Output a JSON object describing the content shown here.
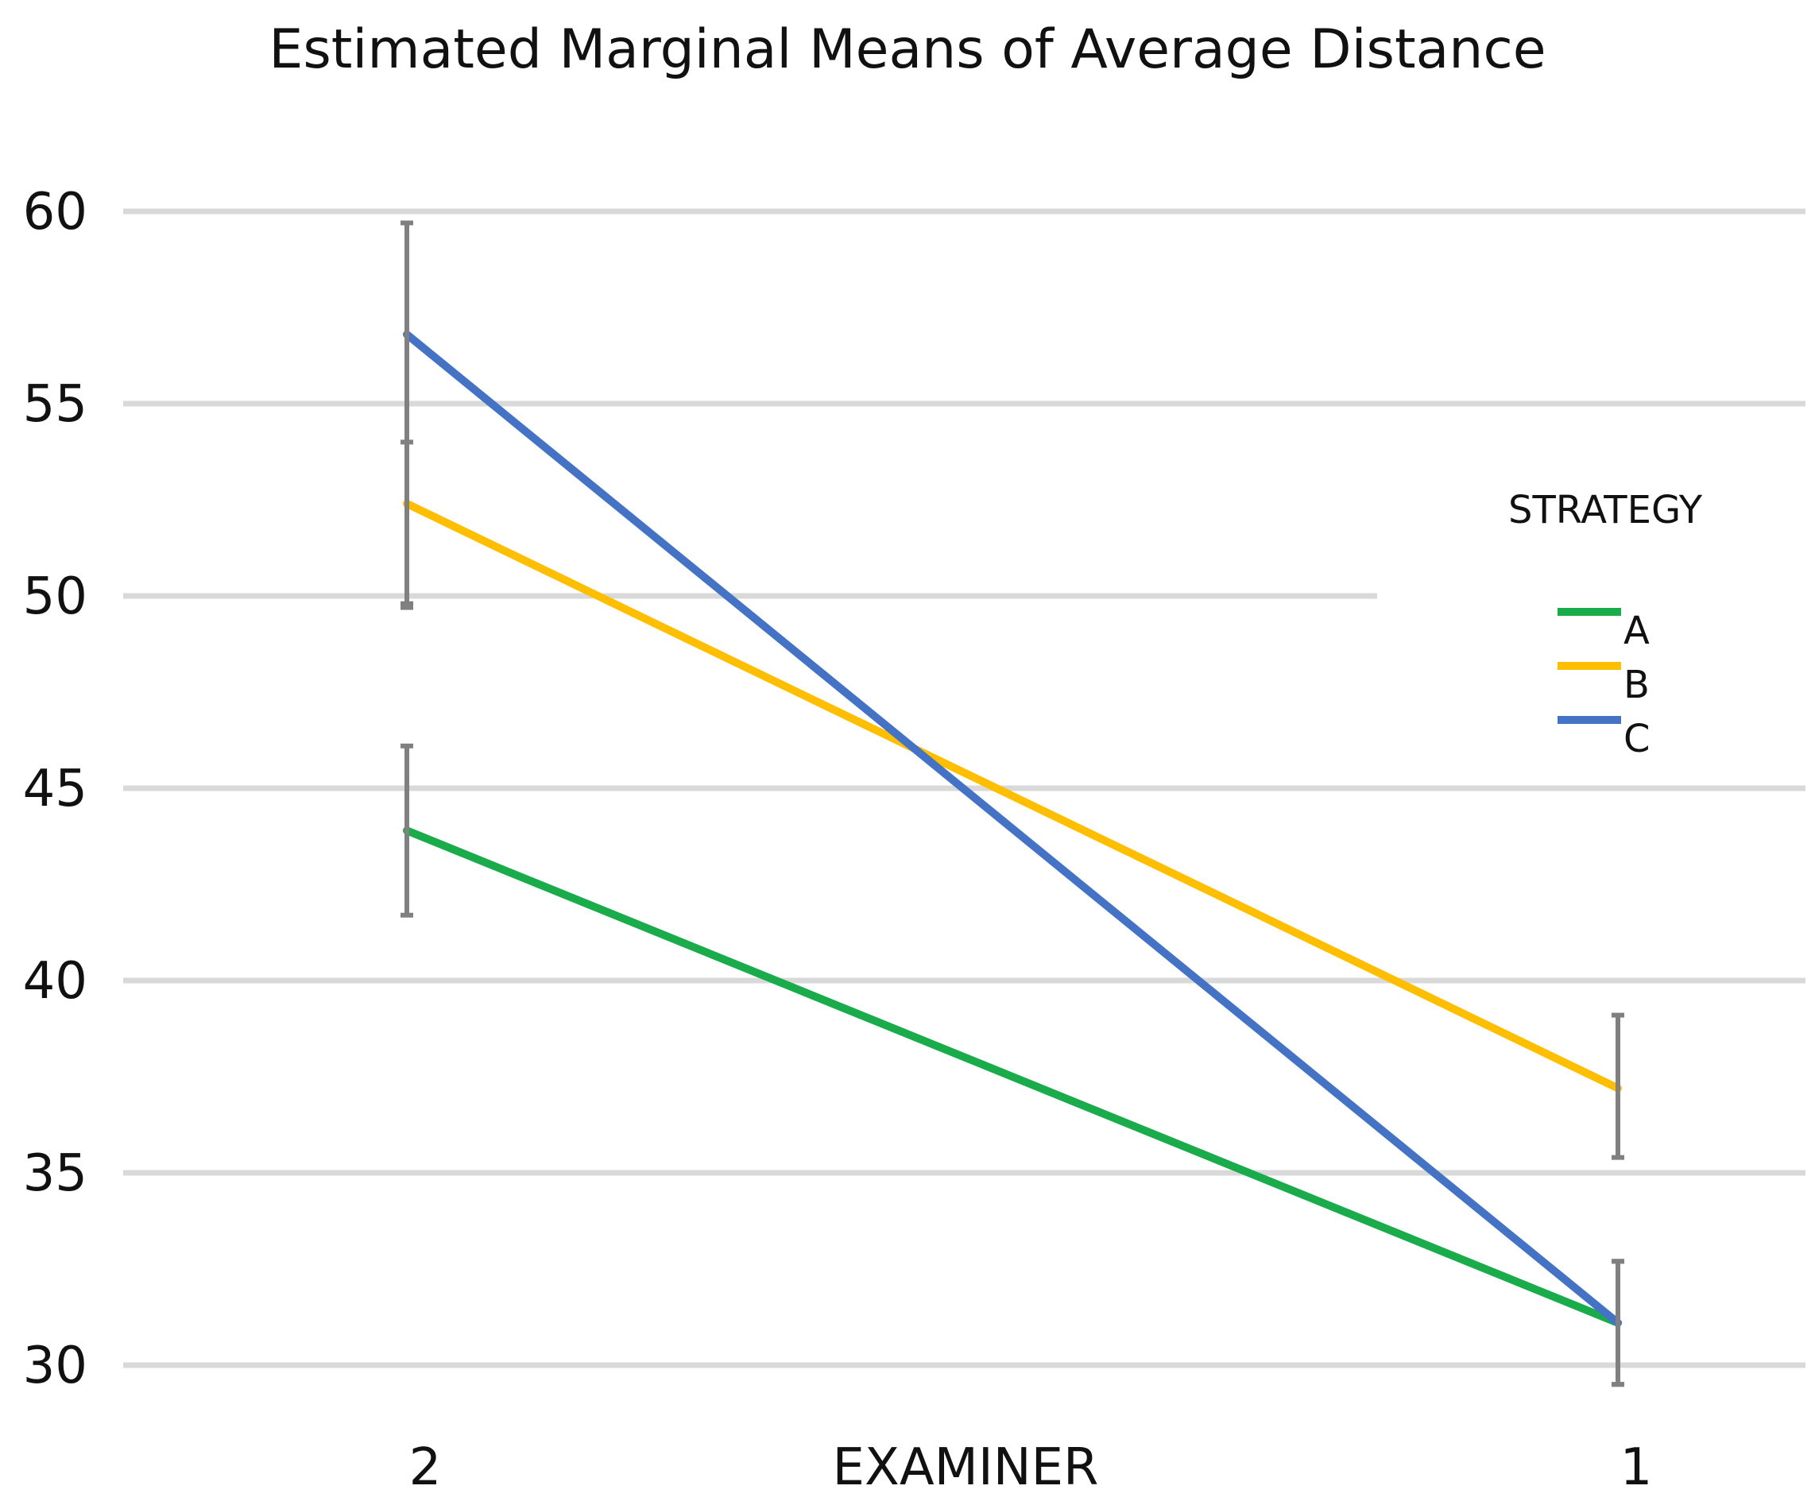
{
  "chart_data": {
    "type": "line",
    "title": "Estimated Marginal Means of Average Distance",
    "xlabel": "EXAMINER",
    "ylabel": "",
    "categories": [
      "2",
      "1"
    ],
    "ylim": [
      30,
      60
    ],
    "yticks": [
      30,
      35,
      40,
      45,
      50,
      55,
      60
    ],
    "grid": true,
    "legend_title": "STRATEGY",
    "legend_position": "right",
    "series": [
      {
        "name": "A",
        "color": "#1aab4b",
        "values": [
          43.9,
          31.1
        ],
        "error_low": [
          41.7,
          29.5
        ],
        "error_high": [
          46.1,
          32.7
        ]
      },
      {
        "name": "B",
        "color": "#ffbf00",
        "values": [
          52.4,
          37.2
        ],
        "error_low": [
          49.8,
          35.4
        ],
        "error_high": [
          54.0,
          39.1
        ]
      },
      {
        "name": "C",
        "color": "#4472c4",
        "values": [
          56.8,
          31.1
        ],
        "error_low": [
          49.7,
          29.5
        ],
        "error_high": [
          59.7,
          32.7
        ]
      }
    ]
  }
}
